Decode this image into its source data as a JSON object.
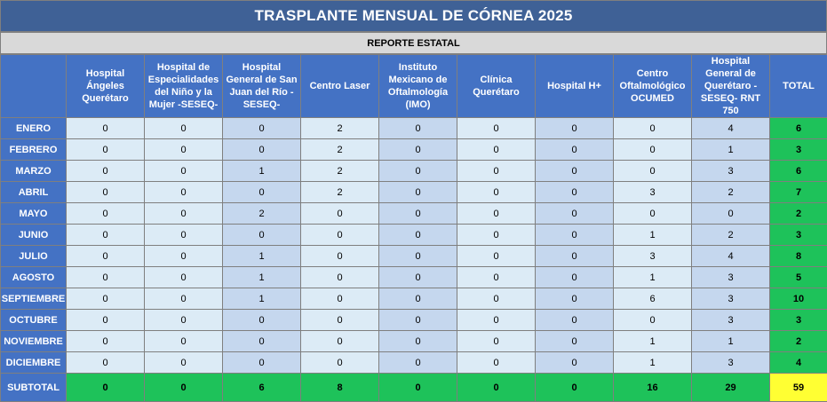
{
  "title": "TRASPLANTE MENSUAL DE CÓRNEA 2025",
  "subtitle": "REPORTE ESTATAL",
  "columns": [
    "",
    "Hospital Ángeles Querétaro",
    "Hospital de Especialidades del Niño y la Mujer -SESEQ-",
    "Hospital General de San Juan del Río -SESEQ-",
    "Centro Laser",
    "Instituto Mexicano de Oftalmología (IMO)",
    "Clínica Querétaro",
    "Hospital H+",
    "Centro Oftalmológico OCUMED",
    "Hospital General de Querétaro -SESEQ- RNT 750",
    "TOTAL"
  ],
  "rows": [
    {
      "month": "ENERO",
      "values": [
        "0",
        "0",
        "0",
        "2",
        "0",
        "0",
        "0",
        "0",
        "4"
      ],
      "total": "6"
    },
    {
      "month": "FEBRERO",
      "values": [
        "0",
        "0",
        "0",
        "2",
        "0",
        "0",
        "0",
        "0",
        "1"
      ],
      "total": "3"
    },
    {
      "month": "MARZO",
      "values": [
        "0",
        "0",
        "1",
        "2",
        "0",
        "0",
        "0",
        "0",
        "3"
      ],
      "total": "6"
    },
    {
      "month": "ABRIL",
      "values": [
        "0",
        "0",
        "0",
        "2",
        "0",
        "0",
        "0",
        "3",
        "2"
      ],
      "total": "7"
    },
    {
      "month": "MAYO",
      "values": [
        "0",
        "0",
        "2",
        "0",
        "0",
        "0",
        "0",
        "0",
        "0"
      ],
      "total": "2"
    },
    {
      "month": "JUNIO",
      "values": [
        "0",
        "0",
        "0",
        "0",
        "0",
        "0",
        "0",
        "1",
        "2"
      ],
      "total": "3"
    },
    {
      "month": "JULIO",
      "values": [
        "0",
        "0",
        "1",
        "0",
        "0",
        "0",
        "0",
        "3",
        "4"
      ],
      "total": "8"
    },
    {
      "month": "AGOSTO",
      "values": [
        "0",
        "0",
        "1",
        "0",
        "0",
        "0",
        "0",
        "1",
        "3"
      ],
      "total": "5"
    },
    {
      "month": "SEPTIEMBRE",
      "values": [
        "0",
        "0",
        "1",
        "0",
        "0",
        "0",
        "0",
        "6",
        "3"
      ],
      "total": "10"
    },
    {
      "month": "OCTUBRE",
      "values": [
        "0",
        "0",
        "0",
        "0",
        "0",
        "0",
        "0",
        "0",
        "3"
      ],
      "total": "3"
    },
    {
      "month": "NOVIEMBRE",
      "values": [
        "0",
        "0",
        "0",
        "0",
        "0",
        "0",
        "0",
        "1",
        "1"
      ],
      "total": "2"
    },
    {
      "month": "DICIEMBRE",
      "values": [
        "0",
        "0",
        "0",
        "0",
        "0",
        "0",
        "0",
        "1",
        "3"
      ],
      "total": "4"
    }
  ],
  "subtotal": {
    "label": "SUBTOTAL",
    "values": [
      "0",
      "0",
      "6",
      "8",
      "0",
      "0",
      "0",
      "16",
      "29"
    ],
    "total": "59"
  },
  "colors": {
    "title_bg": "#3f6196",
    "header_bg": "#4472c4",
    "cell_light": "#dcebf6",
    "cell_blue": "#c5d7ee",
    "total_green": "#1ec25a",
    "grand_total_yellow": "#ffff33"
  }
}
